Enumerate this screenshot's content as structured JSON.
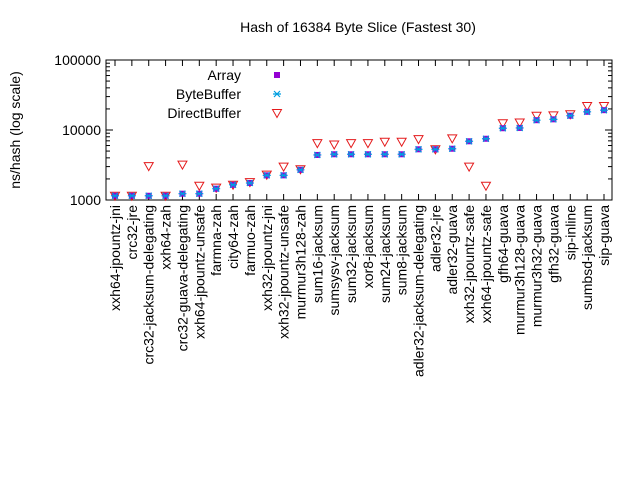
{
  "chart_data": {
    "type": "scatter",
    "title": "Hash of 16384 Byte Slice (Fastest 30)",
    "ylabel": "ns/hash (log scale)",
    "xlabel": "",
    "yscale": "log",
    "ylim": [
      1000,
      100000
    ],
    "yticks": [
      {
        "value": 1000,
        "label": "1000"
      },
      {
        "value": 10000,
        "label": "10000"
      },
      {
        "value": 100000,
        "label": "100000"
      }
    ],
    "legend_position": "top-left",
    "categories": [
      "xxh64-jpountz-jni",
      "crc32-jre",
      "crc32-jacksum-delegating",
      "xxh64-zah",
      "crc32-guava-delegating",
      "xxh64-jpountz-unsafe",
      "farmna-zah",
      "city64-zah",
      "farmuo-zah",
      "xxh32-jpountz-jni",
      "xxh32-jpountz-unsafe",
      "murmur3h128-zah",
      "sum16-jacksum",
      "sumsysv-jacksum",
      "sum32-jacksum",
      "xor8-jacksum",
      "sum24-jacksum",
      "sum8-jacksum",
      "adler32-jacksum-delegating",
      "adler32-jre",
      "adler32-guava",
      "xxh32-jpountz-safe",
      "xxh64-jpountz-safe",
      "gfh64-guava",
      "murmur3h128-guava",
      "murmur3h32-guava",
      "gfh32-guava",
      "sip-inline",
      "sumbsd-jacksum",
      "sip-guava"
    ],
    "series": [
      {
        "name": "Array",
        "color": "#9400d3",
        "marker": "square",
        "values": [
          1150,
          1150,
          1150,
          1150,
          1230,
          1230,
          1450,
          1650,
          1750,
          2250,
          2250,
          2700,
          4400,
          4500,
          4500,
          4500,
          4500,
          4500,
          5300,
          5300,
          5400,
          6900,
          7500,
          10600,
          10700,
          13800,
          14200,
          16000,
          18200,
          19200
        ]
      },
      {
        "name": "ByteBuffer",
        "color": "#009ee0",
        "marker": "asterisk",
        "values": [
          1150,
          1150,
          1150,
          1150,
          1230,
          1230,
          1450,
          1650,
          1750,
          2250,
          2250,
          2700,
          4400,
          4500,
          4500,
          4500,
          4500,
          4500,
          5300,
          5300,
          5400,
          6900,
          7500,
          10600,
          10700,
          13800,
          14200,
          16000,
          18200,
          19200
        ]
      },
      {
        "name": "DirectBuffer",
        "color": "#e41a1c",
        "marker": "triangle-down",
        "values": [
          1150,
          1150,
          3050,
          1150,
          3200,
          1600,
          1500,
          1650,
          1800,
          2300,
          3000,
          2750,
          6500,
          6200,
          6500,
          6500,
          6800,
          6800,
          7400,
          5300,
          7600,
          3000,
          1600,
          12500,
          12800,
          16000,
          16200,
          16800,
          22000,
          22000
        ]
      }
    ]
  }
}
